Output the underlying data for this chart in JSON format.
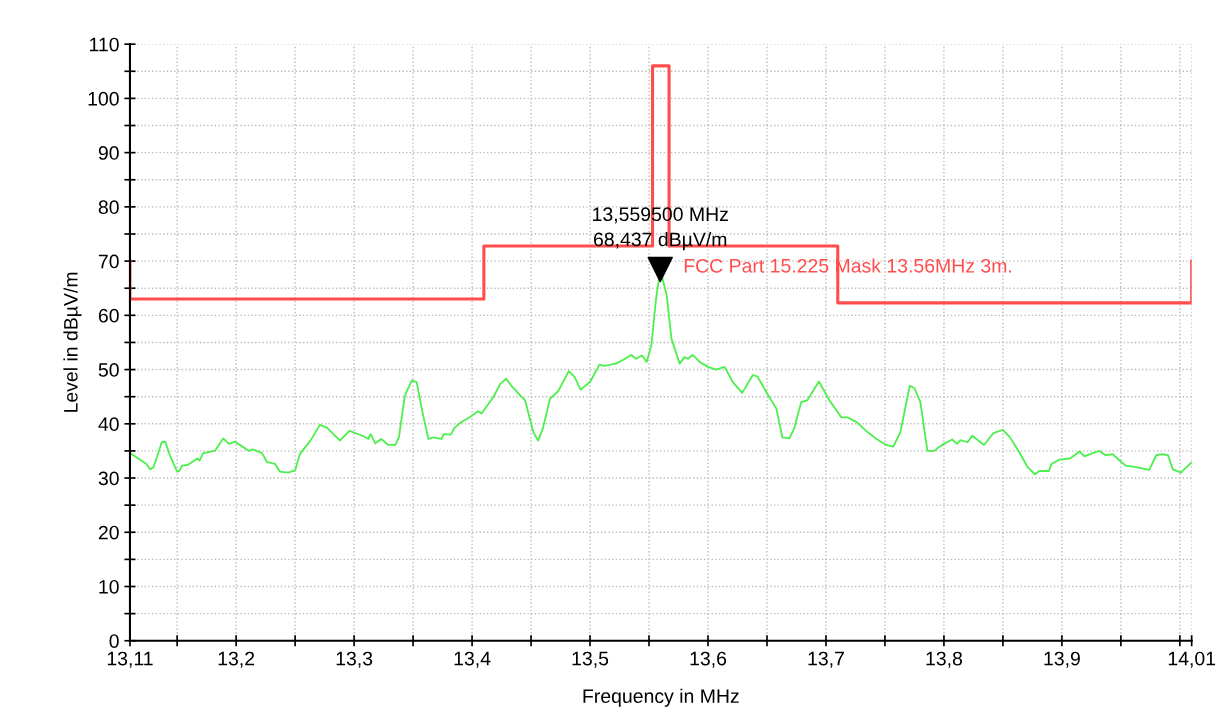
{
  "chart_data": {
    "type": "line",
    "xlabel": "Frequency in MHz",
    "ylabel": "Level in dBµV/m",
    "xlim": [
      13.11,
      14.01
    ],
    "ylim": [
      0,
      110
    ],
    "xticks": [
      {
        "value": 13.11,
        "label": "13,11"
      },
      {
        "value": 13.15,
        "label": null
      },
      {
        "value": 13.2,
        "label": "13,2"
      },
      {
        "value": 13.25,
        "label": null
      },
      {
        "value": 13.3,
        "label": "13,3"
      },
      {
        "value": 13.35,
        "label": null
      },
      {
        "value": 13.4,
        "label": "13,4"
      },
      {
        "value": 13.45,
        "label": null
      },
      {
        "value": 13.5,
        "label": "13,5"
      },
      {
        "value": 13.55,
        "label": null
      },
      {
        "value": 13.6,
        "label": "13,6"
      },
      {
        "value": 13.65,
        "label": null
      },
      {
        "value": 13.7,
        "label": "13,7"
      },
      {
        "value": 13.75,
        "label": null
      },
      {
        "value": 13.8,
        "label": "13,8"
      },
      {
        "value": 13.85,
        "label": null
      },
      {
        "value": 13.9,
        "label": "13,9"
      },
      {
        "value": 13.95,
        "label": null
      },
      {
        "value": 14.0,
        "label": null
      },
      {
        "value": 14.01,
        "label": "14,01"
      }
    ],
    "yticks": [
      0,
      {
        "value": 5,
        "label": null
      },
      10,
      {
        "value": 15,
        "label": null
      },
      20,
      {
        "value": 25,
        "label": null
      },
      30,
      {
        "value": 35,
        "label": null
      },
      40,
      {
        "value": 45,
        "label": null
      },
      50,
      {
        "value": 55,
        "label": null
      },
      60,
      {
        "value": 65,
        "label": null
      },
      70,
      {
        "value": 75,
        "label": null
      },
      80,
      {
        "value": 85,
        "label": null
      },
      90,
      {
        "value": 95,
        "label": null
      },
      100,
      {
        "value": 105,
        "label": null
      },
      110
    ],
    "grid": true,
    "marker": "none",
    "series": [
      {
        "color": "#4cf04c",
        "x": [
          13.111,
          13.124,
          13.127,
          13.13,
          13.137,
          13.14,
          13.144,
          13.15,
          13.152,
          13.154,
          13.159,
          13.167,
          13.169,
          13.172,
          13.182,
          13.189,
          13.194,
          13.199,
          13.206,
          13.211,
          13.214,
          13.222,
          13.226,
          13.233,
          13.237,
          13.244,
          13.25,
          13.254,
          13.263,
          13.271,
          13.277,
          13.288,
          13.296,
          13.301,
          13.308,
          13.312,
          13.314,
          13.318,
          13.323,
          13.329,
          13.335,
          13.338,
          13.343,
          13.349,
          13.353,
          13.358,
          13.363,
          13.367,
          13.374,
          13.376,
          13.382,
          13.385,
          13.39,
          13.398,
          13.405,
          13.408,
          13.418,
          13.424,
          13.429,
          13.433,
          13.441,
          13.445,
          13.452,
          13.456,
          13.46,
          13.466,
          13.473,
          13.482,
          13.487,
          13.492,
          13.5,
          13.508,
          13.512,
          13.522,
          13.529,
          13.535,
          13.539,
          13.544,
          13.548,
          13.552,
          13.556,
          13.5595,
          13.565,
          13.569,
          13.576,
          13.58,
          13.583,
          13.587,
          13.593,
          13.6,
          13.607,
          13.614,
          13.621,
          13.629,
          13.638,
          13.642,
          13.652,
          13.658,
          13.663,
          13.669,
          13.673,
          13.679,
          13.684,
          13.694,
          13.703,
          13.713,
          13.718,
          13.726,
          13.734,
          13.743,
          13.751,
          13.757,
          13.763,
          13.771,
          13.775,
          13.78,
          13.786,
          13.792,
          13.795,
          13.8,
          13.807,
          13.811,
          13.814,
          13.82,
          13.824,
          13.834,
          13.842,
          13.85,
          13.856,
          13.864,
          13.871,
          13.877,
          13.881,
          13.889,
          13.891,
          13.898,
          13.907,
          13.915,
          13.919,
          13.926,
          13.932,
          13.937,
          13.943,
          13.947,
          13.954,
          13.963,
          13.974,
          13.98,
          13.985,
          13.99,
          13.994,
          14.001,
          14.004,
          14.01
        ],
        "values": [
          34.5,
          32.6,
          31.6,
          32.0,
          36.6,
          36.7,
          34.1,
          31.2,
          31.3,
          32.3,
          32.4,
          33.6,
          33.2,
          34.6,
          35.0,
          37.3,
          36.3,
          36.7,
          35.7,
          35.0,
          35.3,
          34.6,
          33.0,
          32.6,
          31.2,
          31.0,
          31.4,
          34.4,
          36.9,
          39.8,
          39.3,
          36.9,
          38.7,
          38.3,
          37.7,
          37.2,
          38.1,
          36.4,
          37.2,
          36.1,
          36.1,
          37.5,
          45.2,
          48.0,
          47.7,
          42.1,
          37.2,
          37.5,
          37.2,
          38.1,
          38.0,
          39.2,
          40.2,
          41.2,
          42.3,
          41.9,
          44.9,
          47.4,
          48.3,
          47.1,
          45.2,
          44.3,
          38.4,
          36.9,
          39.1,
          44.6,
          46.0,
          49.7,
          48.6,
          46.3,
          47.7,
          50.9,
          50.7,
          51.1,
          51.9,
          52.7,
          52.0,
          52.6,
          51.4,
          54.5,
          63.1,
          68.4,
          63.7,
          55.7,
          51.1,
          52.3,
          52.0,
          52.7,
          51.4,
          50.5,
          50.0,
          50.5,
          47.7,
          45.7,
          49.0,
          48.7,
          44.9,
          42.8,
          37.5,
          37.3,
          39.1,
          44.0,
          44.3,
          47.8,
          44.3,
          41.2,
          41.2,
          40.3,
          38.7,
          37.2,
          36.1,
          35.8,
          38.4,
          47.0,
          46.6,
          44.0,
          35.0,
          35.0,
          35.6,
          36.3,
          37.1,
          36.3,
          37.0,
          36.6,
          37.8,
          36.1,
          38.3,
          38.9,
          37.5,
          34.7,
          32.0,
          30.7,
          31.3,
          31.3,
          32.6,
          33.4,
          33.6,
          34.9,
          34.0,
          34.6,
          35.0,
          34.2,
          34.4,
          33.6,
          32.3,
          32.0,
          31.5,
          34.2,
          34.4,
          34.2,
          31.6,
          31.0,
          31.7,
          32.9
        ]
      },
      {
        "name": "FCC Part 15.225 Mask 13.56MHz 3m.",
        "color": "#ff4d4d",
        "x": [
          13.11,
          13.11,
          13.41,
          13.41,
          13.553,
          13.553,
          13.567,
          13.567,
          13.71,
          13.71,
          14.01,
          14.01
        ],
        "values": [
          70.0,
          63.0,
          63.0,
          72.8,
          72.8,
          106.0,
          106.0,
          72.8,
          72.8,
          62.3,
          62.3,
          70.0
        ]
      }
    ],
    "annotations": [
      {
        "text": "13,559500 MHz\n68,437 dBµV/m",
        "x": 13.5595,
        "y": 68.437
      }
    ]
  }
}
